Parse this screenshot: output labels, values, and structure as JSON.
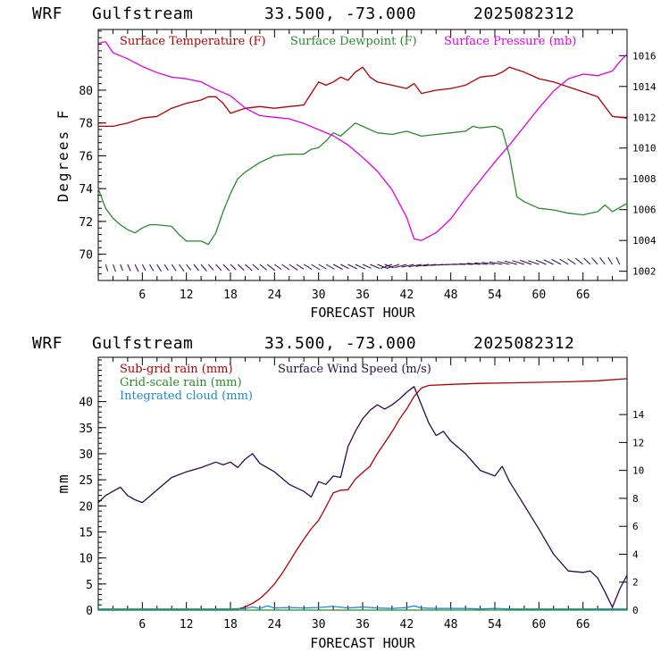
{
  "header": {
    "model": "WRF",
    "site": "Gulfstream",
    "coords": "33.500, -73.000",
    "init": "2025082312"
  },
  "colors": {
    "temperature": "#b00000",
    "dewpoint": "#2a8a2a",
    "pressure": "#e000e0",
    "wind": "#2a0a4a",
    "subgrid_rain": "#b00000",
    "gridscale_rain": "#2a8a2a",
    "cloud": "#1a8ad0"
  },
  "chart_data": [
    {
      "type": "line",
      "xlabel": "FORECAST HOUR",
      "ylabel": "Degrees F",
      "xlim": [
        0,
        72
      ],
      "ylim": [
        68.4,
        83.7
      ],
      "y2lim": [
        1001.4,
        1017.7
      ],
      "xticks": [
        6,
        12,
        18,
        24,
        30,
        36,
        42,
        48,
        54,
        60,
        66
      ],
      "xtick_labels": [
        "6",
        "12",
        "18",
        "24",
        "30",
        "36",
        "42",
        "48",
        "54",
        "60",
        "66"
      ],
      "yticks": [
        70,
        72,
        74,
        76,
        78,
        80
      ],
      "yticks_labels": [
        "70",
        "72",
        "74",
        "76",
        "78",
        "80"
      ],
      "y2ticks": [
        1002,
        1004,
        1006,
        1008,
        1010,
        1012,
        1014,
        1016
      ],
      "y2ticks_labels": [
        "1002",
        "1004",
        "1006",
        "1008",
        "1010",
        "1012",
        "1014",
        "1016"
      ],
      "series": [
        {
          "name": "Surface Temperature (F)",
          "axis": "left",
          "x": [
            0,
            2,
            4,
            6,
            8,
            10,
            12,
            14,
            15,
            16,
            17,
            18,
            20,
            22,
            24,
            26,
            28,
            29,
            30,
            31,
            32,
            33,
            34,
            35,
            36,
            37,
            38,
            40,
            42,
            43,
            44,
            46,
            48,
            50,
            52,
            54,
            55,
            56,
            58,
            60,
            62,
            64,
            66,
            68,
            69,
            70,
            72
          ],
          "y": [
            77.8,
            77.8,
            78.0,
            78.3,
            78.4,
            78.9,
            79.2,
            79.4,
            79.6,
            79.6,
            79.2,
            78.6,
            78.9,
            79.0,
            78.9,
            79.0,
            79.1,
            79.8,
            80.5,
            80.3,
            80.5,
            80.8,
            80.6,
            81.1,
            81.4,
            80.8,
            80.5,
            80.3,
            80.1,
            80.4,
            79.8,
            80.0,
            80.1,
            80.3,
            80.8,
            80.9,
            81.1,
            81.4,
            81.1,
            80.7,
            80.5,
            80.2,
            79.9,
            79.6,
            79.0,
            78.4,
            78.3
          ]
        },
        {
          "name": "Surface Dewpoint (F)",
          "axis": "left",
          "x": [
            0,
            1,
            2,
            3,
            4,
            5,
            6,
            7,
            8,
            10,
            11,
            12,
            13,
            14,
            15,
            16,
            17,
            18,
            19,
            20,
            22,
            24,
            26,
            28,
            29,
            30,
            31,
            32,
            33,
            34,
            35,
            36,
            38,
            40,
            42,
            44,
            46,
            48,
            50,
            51,
            52,
            54,
            55,
            56,
            57,
            58,
            60,
            62,
            64,
            66,
            68,
            69,
            70,
            72
          ],
          "y": [
            74.0,
            72.8,
            72.2,
            71.8,
            71.5,
            71.3,
            71.6,
            71.8,
            71.8,
            71.7,
            71.2,
            70.8,
            70.8,
            70.8,
            70.6,
            71.3,
            72.6,
            73.7,
            74.6,
            75.0,
            75.6,
            76.0,
            76.1,
            76.1,
            76.4,
            76.5,
            76.9,
            77.4,
            77.2,
            77.6,
            78.0,
            77.8,
            77.4,
            77.3,
            77.5,
            77.2,
            77.3,
            77.4,
            77.5,
            77.8,
            77.7,
            77.8,
            77.6,
            76.0,
            73.5,
            73.2,
            72.8,
            72.7,
            72.5,
            72.4,
            72.6,
            73.0,
            72.6,
            73.1
          ]
        },
        {
          "name": "Surface Pressure (mb)",
          "axis": "right",
          "x": [
            0,
            1,
            2,
            4,
            6,
            8,
            10,
            12,
            14,
            16,
            18,
            20,
            22,
            24,
            26,
            28,
            30,
            32,
            34,
            36,
            38,
            40,
            42,
            43,
            44,
            46,
            48,
            50,
            52,
            54,
            56,
            58,
            60,
            62,
            64,
            66,
            68,
            70,
            71,
            72
          ],
          "y": [
            1016.8,
            1016.9,
            1016.2,
            1015.8,
            1015.3,
            1014.9,
            1014.6,
            1014.5,
            1014.3,
            1013.8,
            1013.4,
            1012.6,
            1012.1,
            1012.0,
            1011.9,
            1011.6,
            1011.2,
            1010.8,
            1010.2,
            1009.4,
            1008.5,
            1007.3,
            1005.5,
            1004.1,
            1004.0,
            1004.5,
            1005.4,
            1006.7,
            1007.9,
            1009.1,
            1010.2,
            1011.4,
            1012.6,
            1013.7,
            1014.5,
            1014.8,
            1014.7,
            1015.0,
            1015.6,
            1016.1
          ]
        }
      ]
    },
    {
      "type": "line",
      "xlabel": "FORECAST HOUR",
      "ylabel": "mm",
      "xlim": [
        0,
        72
      ],
      "ylim": [
        0,
        48.5
      ],
      "y2lim": [
        0,
        18.1
      ],
      "xticks": [
        6,
        12,
        18,
        24,
        30,
        36,
        42,
        48,
        54,
        60,
        66
      ],
      "xtick_labels": [
        "6",
        "12",
        "18",
        "24",
        "30",
        "36",
        "42",
        "48",
        "54",
        "60",
        "66"
      ],
      "yticks": [
        0,
        5,
        10,
        15,
        20,
        25,
        30,
        35,
        40
      ],
      "yticks_labels": [
        "0",
        "5",
        "10",
        "15",
        "20",
        "25",
        "30",
        "35",
        "40"
      ],
      "y2ticks": [
        0,
        2,
        4,
        6,
        8,
        10,
        12,
        14
      ],
      "y2ticks_labels": [
        "0",
        "2",
        "4",
        "6",
        "8",
        "10",
        "12",
        "14"
      ],
      "series": [
        {
          "name": "Sub-grid rain (mm)",
          "axis": "left",
          "x": [
            0,
            18,
            19,
            20,
            21,
            22,
            23,
            24,
            25,
            26,
            27,
            28,
            29,
            30,
            31,
            32,
            33,
            34,
            35,
            36,
            37,
            38,
            39,
            40,
            41,
            42,
            43,
            44,
            45,
            48,
            52,
            56,
            60,
            64,
            68,
            72
          ],
          "y": [
            0,
            0,
            0.2,
            0.6,
            1.3,
            2.2,
            3.5,
            5.0,
            7.0,
            9.2,
            11.5,
            13.6,
            15.6,
            17.2,
            19.8,
            22.5,
            23.0,
            23.1,
            25.1,
            26.4,
            27.6,
            30.0,
            32.1,
            34.2,
            36.6,
            38.6,
            41.0,
            42.6,
            43.1,
            43.3,
            43.5,
            43.6,
            43.7,
            43.8,
            44.0,
            44.4
          ]
        },
        {
          "name": "Grid-scale rain (mm)",
          "axis": "left",
          "x": [
            0,
            72
          ],
          "y": [
            0,
            0
          ]
        },
        {
          "name": "Integrated cloud (mm)",
          "axis": "left",
          "x": [
            0,
            6,
            12,
            18,
            20,
            21,
            22,
            23,
            24,
            26,
            28,
            30,
            32,
            34,
            36,
            38,
            40,
            42,
            43,
            44,
            46,
            48,
            50,
            52,
            54,
            56,
            60,
            66,
            72
          ],
          "y": [
            0.2,
            0.2,
            0.2,
            0.2,
            0.3,
            0.6,
            0.3,
            0.8,
            0.4,
            0.5,
            0.4,
            0.5,
            0.7,
            0.4,
            0.6,
            0.4,
            0.3,
            0.5,
            0.8,
            0.4,
            0.3,
            0.3,
            0.3,
            0.2,
            0.3,
            0.2,
            0.2,
            0.2,
            0.2
          ]
        },
        {
          "name": "Surface Wind Speed (m/s)",
          "axis": "right",
          "x": [
            0,
            1,
            2,
            3,
            4,
            5,
            6,
            8,
            10,
            12,
            14,
            16,
            17,
            18,
            19,
            20,
            21,
            22,
            24,
            26,
            28,
            29,
            30,
            31,
            32,
            33,
            34,
            35,
            36,
            37,
            38,
            39,
            40,
            41,
            42,
            43,
            44,
            45,
            46,
            47,
            48,
            50,
            52,
            54,
            55,
            56,
            58,
            60,
            62,
            64,
            66,
            67,
            68,
            69,
            70,
            71,
            72
          ],
          "y": [
            7.7,
            8.2,
            8.5,
            8.8,
            8.2,
            7.9,
            7.7,
            8.6,
            9.5,
            9.9,
            10.2,
            10.6,
            10.4,
            10.6,
            10.2,
            10.8,
            11.2,
            10.5,
            9.9,
            9.0,
            8.5,
            8.1,
            9.2,
            9.0,
            9.6,
            9.5,
            11.7,
            12.8,
            13.7,
            14.3,
            14.7,
            14.4,
            14.7,
            15.1,
            15.6,
            16.0,
            14.7,
            13.4,
            12.5,
            12.8,
            12.1,
            11.2,
            10.0,
            9.6,
            10.3,
            9.2,
            7.5,
            5.8,
            4.0,
            2.8,
            2.7,
            2.8,
            2.3,
            1.3,
            0.2,
            1.5,
            2.5
          ]
        }
      ]
    }
  ]
}
